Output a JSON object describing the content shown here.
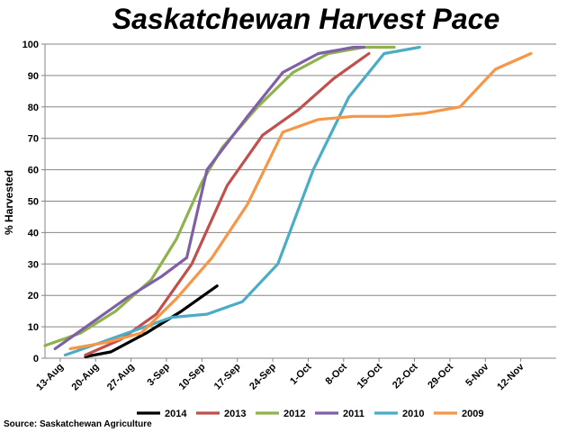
{
  "chart_data": {
    "type": "line",
    "title": "Saskatchewan Harvest Pace",
    "ylabel": "% Harvested",
    "xlabel": "",
    "source": "Source: Saskatchewan Agriculture",
    "ylim": [
      0,
      100
    ],
    "yticks": [
      0,
      10,
      20,
      30,
      40,
      50,
      60,
      70,
      80,
      90,
      100
    ],
    "xlim": [
      "2014-08-10",
      "2014-11-19"
    ],
    "xticks": [
      {
        "label": "13-Aug",
        "date": "2014-08-13"
      },
      {
        "label": "20-Aug",
        "date": "2014-08-20"
      },
      {
        "label": "27-Aug",
        "date": "2014-08-27"
      },
      {
        "label": "3-Sep",
        "date": "2014-09-03"
      },
      {
        "label": "10-Sep",
        "date": "2014-09-10"
      },
      {
        "label": "17-Sep",
        "date": "2014-09-17"
      },
      {
        "label": "24-Sep",
        "date": "2014-09-24"
      },
      {
        "label": "1-Oct",
        "date": "2014-10-01"
      },
      {
        "label": "8-Oct",
        "date": "2014-10-08"
      },
      {
        "label": "15-Oct",
        "date": "2014-10-15"
      },
      {
        "label": "22-Oct",
        "date": "2014-10-22"
      },
      {
        "label": "29-Oct",
        "date": "2014-10-29"
      },
      {
        "label": "5-Nov",
        "date": "2014-11-05"
      },
      {
        "label": "12-Nov",
        "date": "2014-11-12"
      }
    ],
    "grid": true,
    "legend_position": "bottom",
    "series": [
      {
        "name": "2014",
        "color": "#000000",
        "points": [
          [
            "2014-08-18",
            0.5
          ],
          [
            "2014-08-23",
            2
          ],
          [
            "2014-08-30",
            8
          ],
          [
            "2014-09-06",
            15
          ],
          [
            "2014-09-13",
            23
          ]
        ]
      },
      {
        "name": "2013",
        "color": "#c0504d",
        "points": [
          [
            "2014-08-18",
            1
          ],
          [
            "2014-08-25",
            6
          ],
          [
            "2014-09-01",
            14
          ],
          [
            "2014-09-08",
            30
          ],
          [
            "2014-09-15",
            55
          ],
          [
            "2014-09-22",
            71
          ],
          [
            "2014-09-29",
            79
          ],
          [
            "2014-10-06",
            89
          ],
          [
            "2014-10-13",
            97
          ]
        ]
      },
      {
        "name": "2012",
        "color": "#8fb34c",
        "points": [
          [
            "2014-08-10",
            4
          ],
          [
            "2014-08-17",
            8
          ],
          [
            "2014-08-24",
            15
          ],
          [
            "2014-08-31",
            25
          ],
          [
            "2014-09-05",
            38
          ],
          [
            "2014-09-10",
            56
          ],
          [
            "2014-09-14",
            67
          ],
          [
            "2014-09-21",
            80
          ],
          [
            "2014-09-28",
            91
          ],
          [
            "2014-10-05",
            97
          ],
          [
            "2014-10-12",
            99
          ],
          [
            "2014-10-18",
            99
          ]
        ]
      },
      {
        "name": "2011",
        "color": "#7f5fa8",
        "points": [
          [
            "2014-08-12",
            3
          ],
          [
            "2014-08-19",
            11
          ],
          [
            "2014-08-26",
            19
          ],
          [
            "2014-09-02",
            26
          ],
          [
            "2014-09-07",
            32
          ],
          [
            "2014-09-11",
            60
          ],
          [
            "2014-09-19",
            77
          ],
          [
            "2014-09-26",
            91
          ],
          [
            "2014-10-03",
            97
          ],
          [
            "2014-10-10",
            99
          ],
          [
            "2014-10-12",
            99
          ]
        ]
      },
      {
        "name": "2010",
        "color": "#4bacc6",
        "points": [
          [
            "2014-08-14",
            1
          ],
          [
            "2014-08-21",
            5
          ],
          [
            "2014-08-28",
            9
          ],
          [
            "2014-09-04",
            13
          ],
          [
            "2014-09-11",
            14
          ],
          [
            "2014-09-18",
            18
          ],
          [
            "2014-09-25",
            30
          ],
          [
            "2014-10-02",
            60
          ],
          [
            "2014-10-09",
            83
          ],
          [
            "2014-10-16",
            97
          ],
          [
            "2014-10-23",
            99
          ]
        ]
      },
      {
        "name": "2009",
        "color": "#f79646",
        "points": [
          [
            "2014-08-15",
            3
          ],
          [
            "2014-08-22",
            5
          ],
          [
            "2014-08-29",
            8
          ],
          [
            "2014-09-05",
            19
          ],
          [
            "2014-09-12",
            32
          ],
          [
            "2014-09-19",
            49
          ],
          [
            "2014-09-26",
            72
          ],
          [
            "2014-10-03",
            76
          ],
          [
            "2014-10-10",
            77
          ],
          [
            "2014-10-17",
            77
          ],
          [
            "2014-10-24",
            78
          ],
          [
            "2014-10-31",
            80
          ],
          [
            "2014-11-07",
            92
          ],
          [
            "2014-11-14",
            97
          ]
        ]
      }
    ]
  }
}
